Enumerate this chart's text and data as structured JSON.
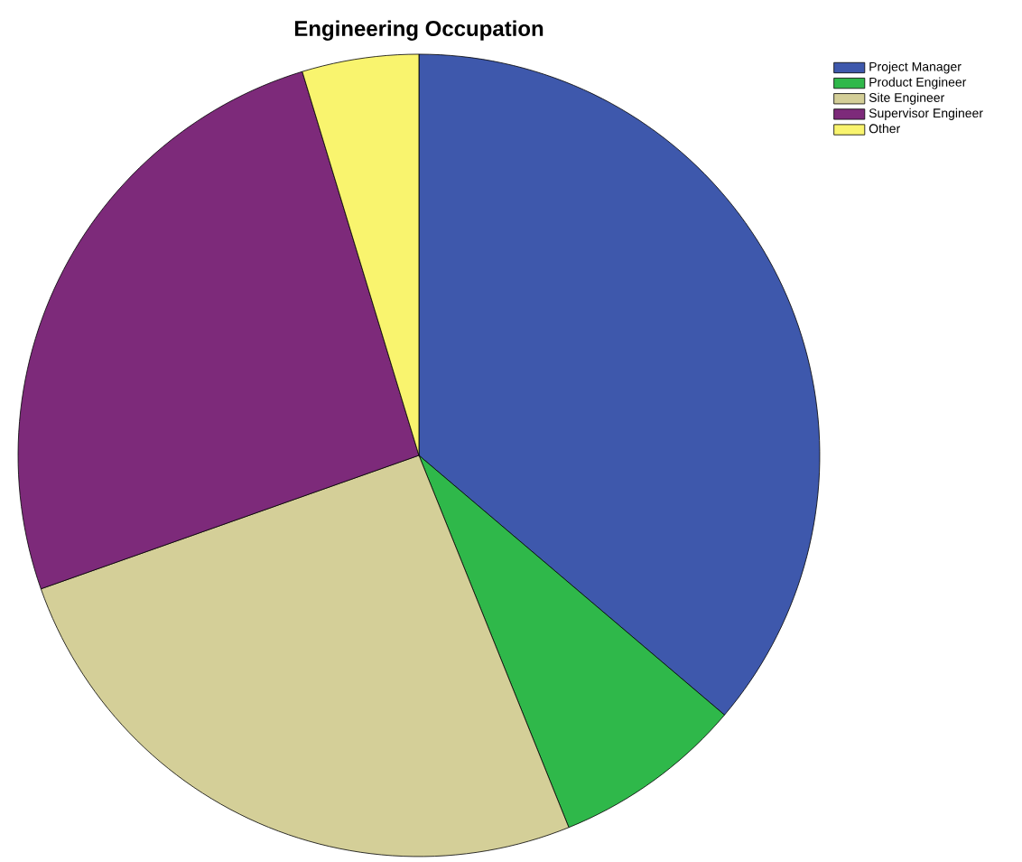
{
  "chart_data": {
    "type": "pie",
    "title": "Engineering Occupation",
    "categories": [
      "Project Manager",
      "Product Engineer",
      "Site Engineer",
      "Supervisor Engineer",
      "Other"
    ],
    "values": [
      36.2,
      7.7,
      25.7,
      25.7,
      4.7
    ],
    "colors": [
      "#3e58ac",
      "#2fb84a",
      "#d4cf98",
      "#7d2a7a",
      "#f9f46e"
    ],
    "legend": "top right"
  }
}
